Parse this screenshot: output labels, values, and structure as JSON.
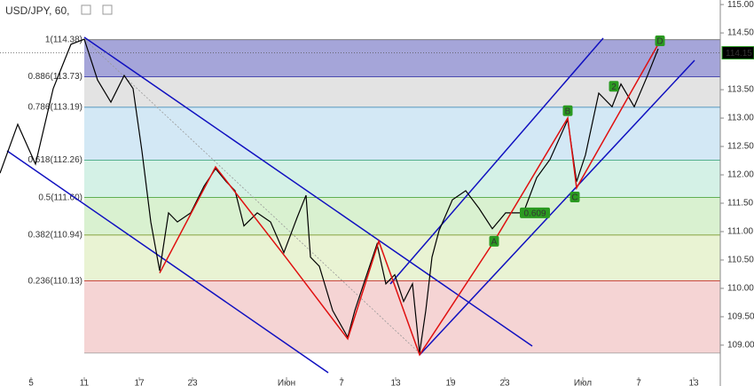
{
  "chart_data": {
    "type": "line",
    "title": "USD/JPY, 60,",
    "x": [
      0,
      2,
      4,
      6,
      8,
      9.5,
      11,
      12.5,
      14,
      15,
      16,
      17,
      18,
      19,
      20,
      21.5,
      23,
      24.3,
      25.5,
      26.5,
      27.5,
      29,
      30.5,
      32,
      33.5,
      34.5,
      35,
      36,
      37.5,
      39.2,
      40,
      41,
      42.5,
      43.5,
      44.5,
      45.5,
      46.5,
      47.3,
      48,
      48.7,
      49.5,
      51,
      52.5,
      54,
      55.5,
      57,
      59,
      60.5,
      62,
      64,
      65,
      66,
      67.5,
      69,
      70,
      71.5,
      73,
      74.2
    ],
    "series": [
      {
        "color": "#000000",
        "values": [
          112.03,
          112.89,
          112.19,
          113.52,
          114.3,
          114.39,
          113.67,
          113.28,
          113.75,
          113.52,
          112.42,
          111.17,
          110.31,
          111.33,
          111.17,
          111.33,
          111.8,
          112.11,
          111.88,
          111.72,
          111.1,
          111.33,
          111.17,
          110.63,
          111.25,
          111.64,
          110.55,
          110.39,
          109.61,
          109.14,
          109.61,
          110.08,
          110.78,
          110.08,
          110.24,
          109.77,
          110.08,
          108.86,
          109.61,
          110.55,
          111.02,
          111.56,
          111.72,
          111.41,
          111.05,
          111.33,
          111.33,
          111.95,
          112.27,
          112.97,
          111.88,
          112.35,
          113.44,
          113.2,
          113.6,
          113.2,
          113.75,
          114.22
        ]
      }
    ],
    "xlim": [
      0,
      81.2
    ],
    "ylim": [
      108.28,
      115.08
    ],
    "xticks": [
      {
        "value": 3.5,
        "label": "5"
      },
      {
        "value": 9.5,
        "label": "11"
      },
      {
        "value": 15.7,
        "label": "17"
      },
      {
        "value": 21.7,
        "label": "23"
      },
      {
        "value": 32.3,
        "label": "Июн"
      },
      {
        "value": 38.5,
        "label": "7"
      },
      {
        "value": 44.6,
        "label": "13"
      },
      {
        "value": 50.8,
        "label": "19"
      },
      {
        "value": 56.9,
        "label": "23"
      },
      {
        "value": 65.7,
        "label": "Июл"
      },
      {
        "value": 72,
        "label": "7"
      },
      {
        "value": 78.2,
        "label": "13"
      }
    ],
    "yticks": [
      {
        "value": 115,
        "label": "115.00"
      },
      {
        "value": 114.5,
        "label": "114.50"
      },
      {
        "value": 113.5,
        "label": "113.50"
      },
      {
        "value": 113,
        "label": "113.00"
      },
      {
        "value": 112.5,
        "label": "112.50"
      },
      {
        "value": 112,
        "label": "112.00"
      },
      {
        "value": 111.5,
        "label": "111.50"
      },
      {
        "value": 111,
        "label": "111.00"
      },
      {
        "value": 110.5,
        "label": "110.50"
      },
      {
        "value": 110,
        "label": "110.00"
      },
      {
        "value": 109.5,
        "label": "109.50"
      },
      {
        "value": 109,
        "label": "109.00"
      }
    ],
    "last_price": {
      "value": 114.15,
      "label": "114.15"
    },
    "fib_levels": [
      {
        "value": 114.38,
        "label": "1(114.38)",
        "color": "#8f8fd0",
        "text_color": "#555555"
      },
      {
        "value": 113.73,
        "label": "0.886(113.73)",
        "color": "#dcdcdc",
        "text_color": "#1a1aa0"
      },
      {
        "value": 113.19,
        "label": "0.786(113.19)",
        "color": "#c8e2f2",
        "text_color": "#2a7fb0"
      },
      {
        "value": 112.26,
        "label": "0.618(112.26)",
        "color": "#c9eee0",
        "text_color": "#2a9a70"
      },
      {
        "value": 111.6,
        "label": "0.5(111.60)",
        "color": "#cfeec4",
        "text_color": "#3a9a20"
      },
      {
        "value": 110.94,
        "label": "0.382(110.94)",
        "color": "#e4f0c8",
        "text_color": "#6a8a10"
      },
      {
        "value": 110.13,
        "label": "0.236(110.13)",
        "color": "#f2c9c9",
        "text_color": "#c01010"
      }
    ],
    "fib_bottom": 108.86,
    "fib_start": 9.5,
    "zigzag": {
      "x": [
        18,
        24.3,
        32.2,
        39.2,
        42.7,
        47.3,
        55.7,
        64,
        65,
        74.2
      ],
      "y": [
        110.27,
        112.14,
        110.55,
        109.11,
        110.83,
        108.83,
        110.83,
        113.0,
        111.77,
        114.3
      ]
    },
    "pattern_labels": [
      {
        "text": "A",
        "x": 55.7,
        "y": 110.83,
        "color": "#2a9a20"
      },
      {
        "text": "B",
        "x": 64,
        "y": 113.13,
        "color": "#2a9a20"
      },
      {
        "text": "C",
        "x": 64.8,
        "y": 111.61,
        "color": "#2a9a20"
      },
      {
        "text": "D",
        "x": 74.4,
        "y": 114.36,
        "color": "#2a9a20"
      },
      {
        "text": "2",
        "x": 69.2,
        "y": 113.56,
        "color": "#2a9a20"
      },
      {
        "text": "0.609",
        "x": 60.3,
        "y": 111.33,
        "color": "#2a9a20"
      }
    ]
  }
}
